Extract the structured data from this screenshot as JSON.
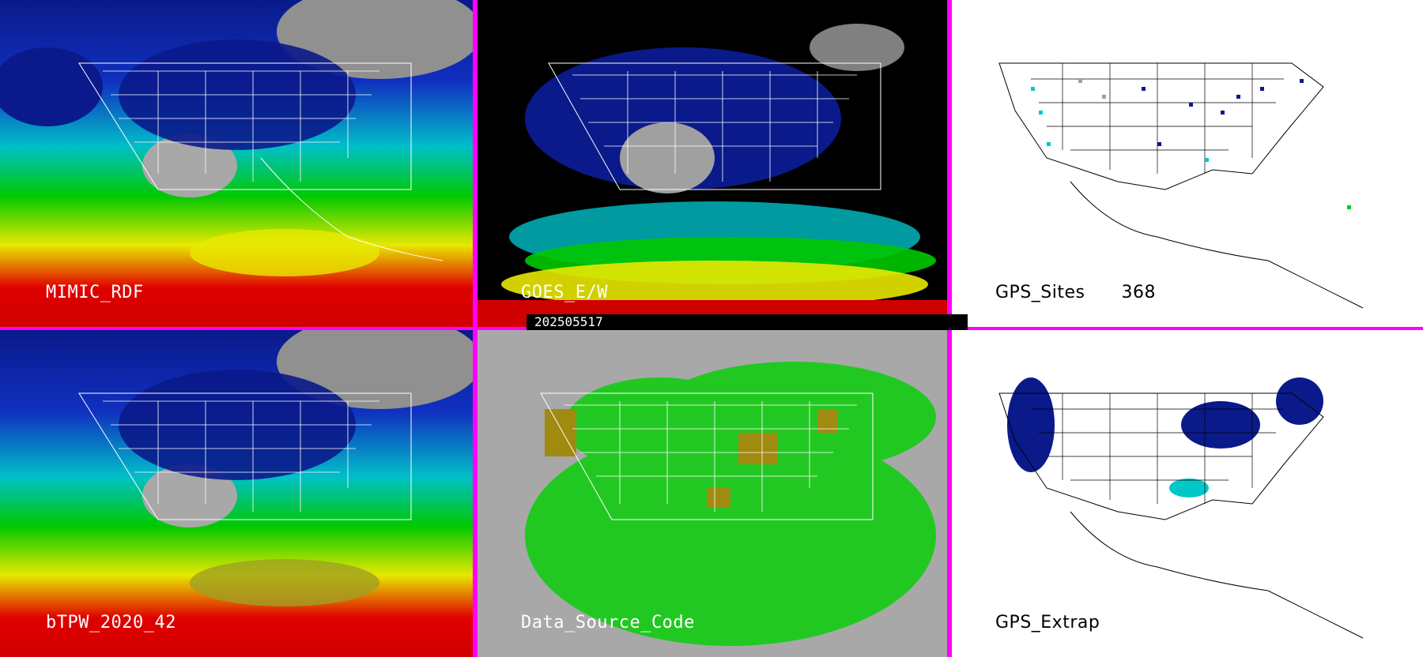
{
  "panels": {
    "p1": {
      "label": "MIMIC_RDF"
    },
    "p2": {
      "label": "GOES_E/W"
    },
    "p3": {
      "label": "GPS_Sites",
      "count": "368"
    },
    "p4": {
      "label": "bTPW_2020_42"
    },
    "p5": {
      "label": "Data_Source_Code"
    },
    "p6": {
      "label": "GPS_Extrap"
    }
  },
  "timestamp": "202505517",
  "colors": {
    "border": "#ff00ff",
    "ocean_low": "#00c8c8",
    "moist_green": "#00d000",
    "moist_yellow": "#e8e800",
    "moist_red": "#e00000",
    "dry_navy": "#0a1a8a",
    "cloud_gray": "#a0a0a0",
    "data_source_green": "#22c822",
    "data_source_olive": "#a08a10"
  }
}
